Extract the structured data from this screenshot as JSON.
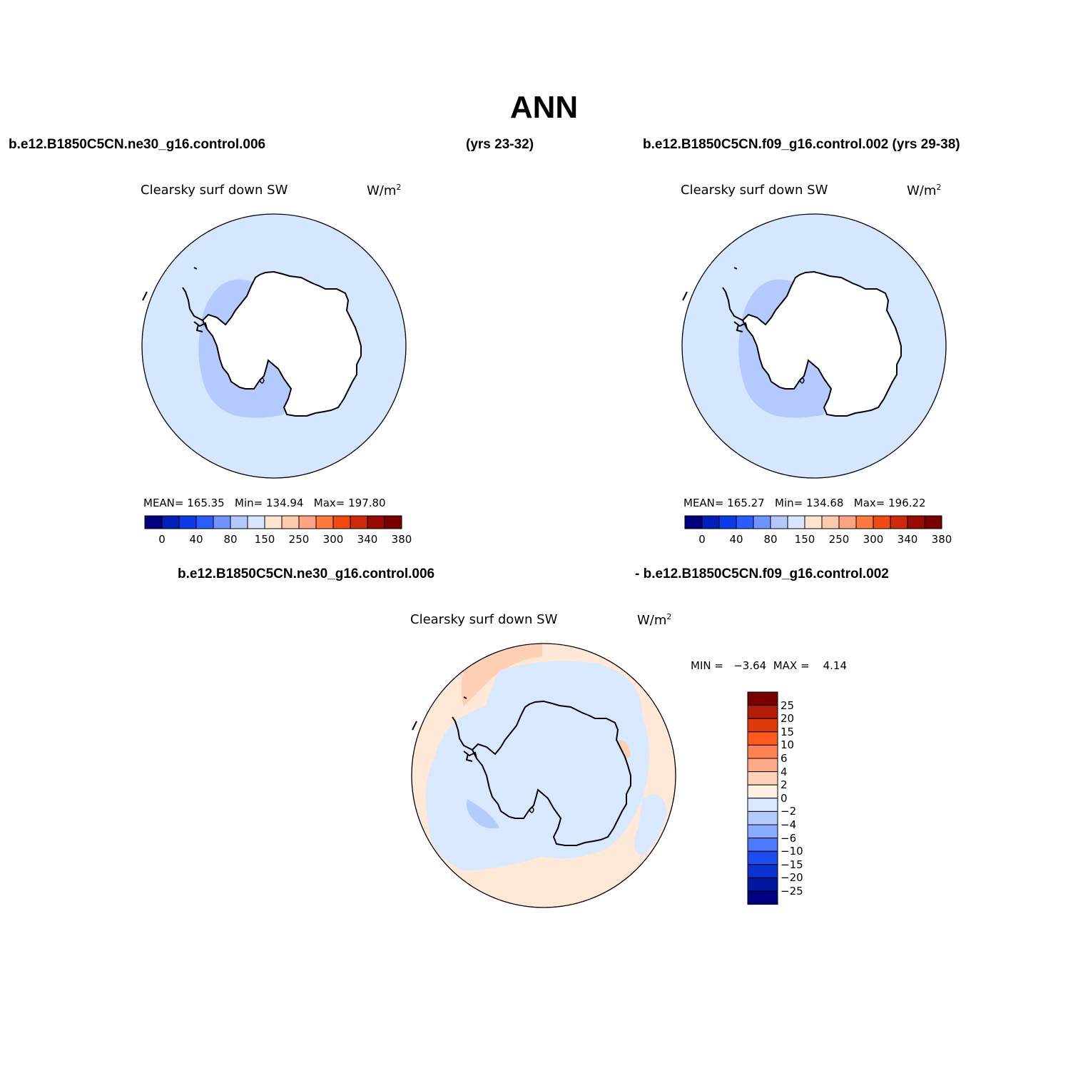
{
  "figure": {
    "title": "ANN",
    "case1": "b.e12.B1850C5CN.ne30_g16.control.006",
    "case1_years": "(yrs 23-32)",
    "case2": "b.e12.B1850C5CN.f09_g16.control.002 (yrs 29-38)",
    "diff_case1": "b.e12.B1850C5CN.ne30_g16.control.006",
    "diff_case2": "- b.e12.B1850C5CN.f09_g16.control.002"
  },
  "panels": [
    {
      "variable": "Clearsky surf down SW",
      "units_base": "W/m",
      "units_exp": "2",
      "stats": "MEAN= 165.35   Min= 134.94   Max= 197.80"
    },
    {
      "variable": "Clearsky surf down SW",
      "units_base": "W/m",
      "units_exp": "2",
      "stats": "MEAN= 165.27   Min= 134.68   Max= 196.22"
    },
    {
      "variable": "Clearsky surf down SW",
      "units_base": "W/m",
      "units_exp": "2",
      "stats": "MIN =   −3.64  MAX =    4.14"
    }
  ],
  "colorbar_horizontal": {
    "colors": [
      "#00007f",
      "#0020b8",
      "#0a3ae6",
      "#2a5cff",
      "#6f94ff",
      "#b3c8ff",
      "#d8e7ff",
      "#ffe4d0",
      "#ffc9ad",
      "#ffa480",
      "#ff7840",
      "#ee4a12",
      "#cc2a0a",
      "#990a00",
      "#7a0000"
    ],
    "tick_labels": [
      "0",
      "40",
      "80",
      "150",
      "250",
      "300",
      "340",
      "380"
    ]
  },
  "colorbar_vertical": {
    "colors": [
      "#7a0000",
      "#b31c05",
      "#df3a0a",
      "#ff5a1e",
      "#ff8050",
      "#ffaa85",
      "#ffd2b8",
      "#fff0e4",
      "#d8e8ff",
      "#b5cbff",
      "#88aaff",
      "#4a7aff",
      "#1a4cf0",
      "#0a32d0",
      "#0018a0",
      "#000080"
    ],
    "tick_labels": [
      "25",
      "20",
      "15",
      "10",
      "6",
      "4",
      "2",
      "0",
      "−2",
      "−4",
      "−6",
      "−10",
      "−15",
      "−20",
      "−25"
    ]
  },
  "map_colors": {
    "ocean_light": "#d5e7ff",
    "mid_blue": "#b4caff",
    "diff_orange": "#ffe8d6",
    "diff_orange_dark": "#ffcfb3",
    "continent": "#ffffff"
  }
}
